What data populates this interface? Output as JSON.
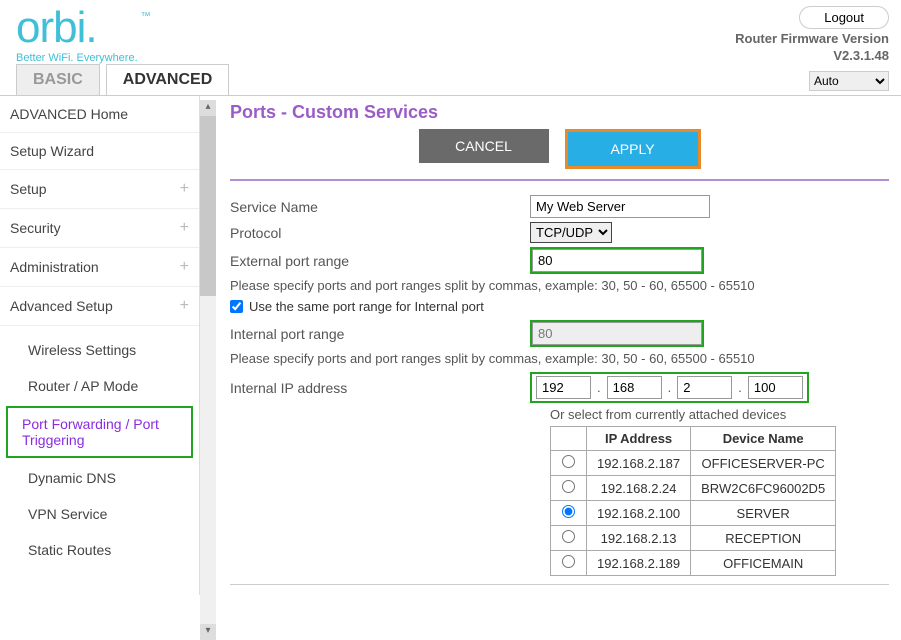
{
  "header": {
    "logo": "orbi",
    "tagline": "Better WiFi. Everywhere.",
    "logout": "Logout",
    "fw_label": "Router Firmware Version",
    "fw_version": "V2.3.1.48",
    "lang_selected": "Auto"
  },
  "tabs": {
    "basic": "BASIC",
    "advanced": "ADVANCED"
  },
  "sidebar": {
    "items": [
      {
        "label": "ADVANCED Home",
        "expander": false
      },
      {
        "label": "Setup Wizard",
        "expander": false
      },
      {
        "label": "Setup",
        "expander": true
      },
      {
        "label": "Security",
        "expander": true
      },
      {
        "label": "Administration",
        "expander": true
      },
      {
        "label": "Advanced Setup",
        "expander": true
      }
    ],
    "sub_items": [
      {
        "label": "Wireless Settings"
      },
      {
        "label": "Router / AP Mode"
      },
      {
        "label": "Port Forwarding / Port Triggering",
        "active": true
      },
      {
        "label": "Dynamic DNS"
      },
      {
        "label": "VPN Service"
      },
      {
        "label": "Static Routes"
      }
    ]
  },
  "page": {
    "title": "Ports - Custom Services",
    "cancel": "CANCEL",
    "apply": "APPLY",
    "service_name_label": "Service Name",
    "service_name_value": "My Web Server",
    "protocol_label": "Protocol",
    "protocol_value": "TCP/UDP",
    "ext_port_label": "External port range",
    "ext_port_value": "80",
    "port_help": "Please specify ports and port ranges split by commas, example: 30, 50 - 60, 65500 - 65510",
    "same_port_label": "Use the same port range for Internal port",
    "same_port_checked": true,
    "int_port_label": "Internal port range",
    "int_port_value": "80",
    "int_ip_label": "Internal IP address",
    "ip_octets": [
      "192",
      "168",
      "2",
      "100"
    ],
    "device_note": "Or select from currently attached devices",
    "columns": [
      "",
      "IP Address",
      "Device Name"
    ],
    "devices": [
      {
        "ip": "192.168.2.187",
        "name": "OFFICESERVER-PC",
        "selected": false
      },
      {
        "ip": "192.168.2.24",
        "name": "BRW2C6FC96002D5",
        "selected": false
      },
      {
        "ip": "192.168.2.100",
        "name": "SERVER",
        "selected": true
      },
      {
        "ip": "192.168.2.13",
        "name": "RECEPTION",
        "selected": false
      },
      {
        "ip": "192.168.2.189",
        "name": "OFFICEMAIN",
        "selected": false
      }
    ]
  },
  "colors": {
    "accent_cyan": "#3fbfd8",
    "apply_blue": "#27aee5",
    "cancel_gray": "#6a6a6a",
    "highlight_orange": "#e88a2a",
    "highlight_green": "#1fa51f",
    "title_purple": "#9a5cc6",
    "hr_purple": "#b18fd6"
  }
}
